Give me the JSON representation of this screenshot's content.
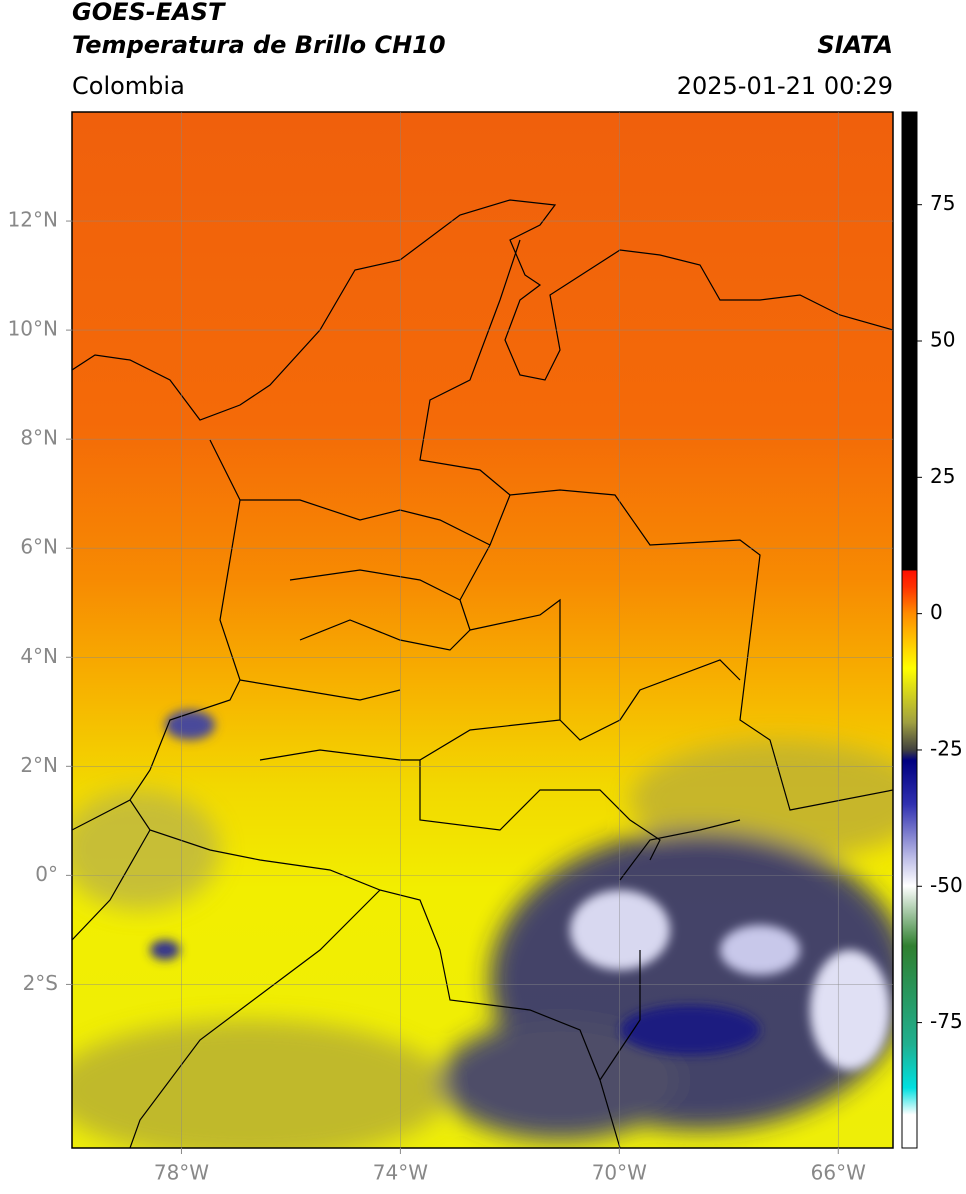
{
  "header": {
    "title": "GOES-EAST",
    "subtitle": "Temperatura de Brillo CH10",
    "region": "Colombia",
    "source": "SIATA",
    "datetime": "2025-01-21 00:29"
  },
  "map": {
    "xlim": [
      -80,
      -65
    ],
    "ylim": [
      -5,
      14
    ],
    "xticks": [
      {
        "value": -78,
        "label": "78°W"
      },
      {
        "value": -74,
        "label": "74°W"
      },
      {
        "value": -70,
        "label": "70°W"
      },
      {
        "value": -66,
        "label": "66°W"
      }
    ],
    "yticks": [
      {
        "value": 12,
        "label": "12°N"
      },
      {
        "value": 10,
        "label": "10°N"
      },
      {
        "value": 8,
        "label": "8°N"
      },
      {
        "value": 6,
        "label": "6°N"
      },
      {
        "value": 4,
        "label": "4°N"
      },
      {
        "value": 2,
        "label": "2°N"
      },
      {
        "value": 0,
        "label": "0°"
      },
      {
        "value": -2,
        "label": "2°S"
      }
    ],
    "grid": true
  },
  "colorbar": {
    "lim": [
      -98,
      92
    ],
    "ticks": [
      75,
      50,
      25,
      0,
      -25,
      -50,
      -75
    ]
  }
}
